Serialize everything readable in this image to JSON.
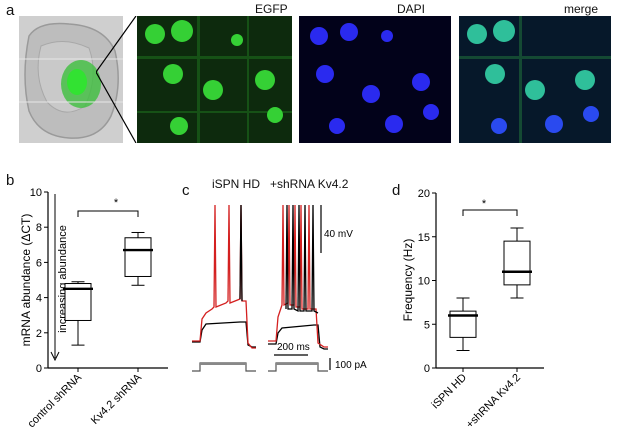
{
  "panel_a": {
    "letter": "a",
    "titles": {
      "egfp": "EGFP",
      "dapi": "DAPI",
      "merge": "merge"
    }
  },
  "panel_b": {
    "letter": "b",
    "annotation": "increasing abundance",
    "significance": "*"
  },
  "panel_c": {
    "letter": "c",
    "group1": "iSPN HD",
    "group2": "+shRNA Kv4.2",
    "scale_mv": "40 mV",
    "scale_ms": "200 ms",
    "scale_pa": "100 pA"
  },
  "panel_d": {
    "letter": "d",
    "significance": "*"
  },
  "chart_data": [
    {
      "type": "box",
      "panel": "b",
      "ylabel": "mRNA abundance (ΔCT)",
      "ylim": [
        0,
        10
      ],
      "yticks": [
        0,
        2,
        4,
        6,
        8,
        10
      ],
      "categories": [
        "control shRNA",
        "Kv4.2 shRNA"
      ],
      "boxes": [
        {
          "min": 1.3,
          "q1": 2.7,
          "median": 4.5,
          "q3": 4.8,
          "max": 4.9
        },
        {
          "min": 4.7,
          "q1": 5.2,
          "median": 6.7,
          "q3": 7.4,
          "max": 7.7
        }
      ]
    },
    {
      "type": "box",
      "panel": "d",
      "ylabel": "Frequency (Hz)",
      "ylim": [
        0,
        20
      ],
      "yticks": [
        0,
        5,
        10,
        15,
        20
      ],
      "categories": [
        "iSPN HD",
        "+shRNA Kv4.2"
      ],
      "boxes": [
        {
          "min": 2,
          "q1": 3.5,
          "median": 6,
          "q3": 6.5,
          "max": 8
        },
        {
          "min": 8,
          "q1": 9.5,
          "median": 11,
          "q3": 14.5,
          "max": 16
        }
      ]
    }
  ]
}
